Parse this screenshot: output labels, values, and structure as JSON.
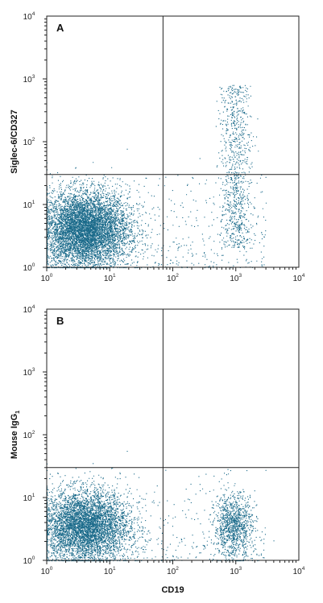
{
  "chart_data": [
    {
      "type": "scatter",
      "panel": "A",
      "xlabel": "",
      "ylabel": "Siglec-6/CD327",
      "xscale": "log",
      "yscale": "log",
      "xlim": [
        1,
        10000
      ],
      "ylim": [
        1,
        10000
      ],
      "xticks": [
        1,
        10,
        100,
        1000,
        10000
      ],
      "yticks": [
        1,
        10,
        100,
        1000,
        10000
      ],
      "tick_labels": [
        {
          "base": "10",
          "exp": "0"
        },
        {
          "base": "10",
          "exp": "1"
        },
        {
          "base": "10",
          "exp": "2"
        },
        {
          "base": "10",
          "exp": "3"
        },
        {
          "base": "10",
          "exp": "4"
        }
      ],
      "quadrant_gate": {
        "x": 70,
        "y": 30
      },
      "point_color": "#1a6a8a",
      "populations": [
        {
          "shape": "dense cluster",
          "x_center": 4,
          "y_center": 4,
          "x_spread_decades": 0.35,
          "y_spread_decades": 0.3,
          "count": 9000
        },
        {
          "shape": "column",
          "x_center": 1000,
          "y_range": [
            2,
            800
          ],
          "x_spread_decades": 0.12,
          "count": 900
        },
        {
          "shape": "sparse background",
          "x_range": [
            1,
            3000
          ],
          "y_range": [
            1,
            30
          ],
          "count": 500
        }
      ]
    },
    {
      "type": "scatter",
      "panel": "B",
      "xlabel": "CD19",
      "ylabel": "Mouse IgG",
      "ylabel_subscript": "1",
      "xscale": "log",
      "yscale": "log",
      "xlim": [
        1,
        10000
      ],
      "ylim": [
        1,
        10000
      ],
      "xticks": [
        1,
        10,
        100,
        1000,
        10000
      ],
      "yticks": [
        1,
        10,
        100,
        1000,
        10000
      ],
      "tick_labels": [
        {
          "base": "10",
          "exp": "0"
        },
        {
          "base": "10",
          "exp": "1"
        },
        {
          "base": "10",
          "exp": "2"
        },
        {
          "base": "10",
          "exp": "3"
        },
        {
          "base": "10",
          "exp": "4"
        }
      ],
      "quadrant_gate": {
        "x": 70,
        "y": 30
      },
      "point_color": "#1a6a8a",
      "populations": [
        {
          "shape": "dense cluster",
          "x_center": 4,
          "y_center": 3.5,
          "x_spread_decades": 0.35,
          "y_spread_decades": 0.28,
          "count": 9000
        },
        {
          "shape": "cluster",
          "x_center": 900,
          "y_center": 3.5,
          "x_spread_decades": 0.15,
          "y_spread_decades": 0.25,
          "count": 1100
        },
        {
          "shape": "sparse background",
          "x_range": [
            1,
            3000
          ],
          "y_range": [
            1,
            30
          ],
          "count": 400
        }
      ]
    }
  ]
}
